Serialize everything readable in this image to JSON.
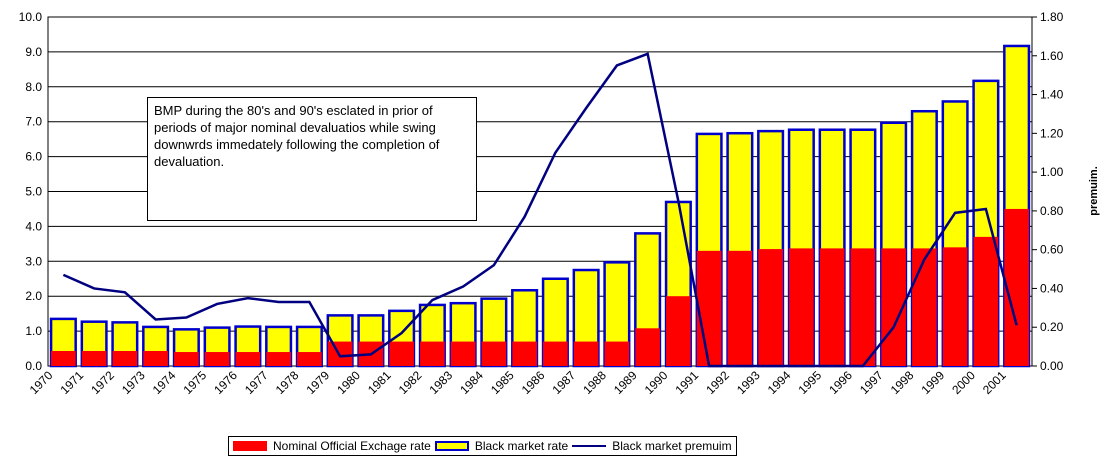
{
  "chart_data": {
    "type": "bar",
    "annotation": "BMP during the 80's and 90's esclated in prior of periods of major nominal devaluatios while swing downwrds immedately following the completion of devaluation.",
    "y2label": "premuim.",
    "categories": [
      "1970",
      "1971",
      "1972",
      "1973",
      "1974",
      "1975",
      "1976",
      "1977",
      "1978",
      "1979",
      "1980",
      "1981",
      "1982",
      "1983",
      "1984",
      "1985",
      "1986",
      "1987",
      "1988",
      "1989",
      "1990",
      "1991",
      "1992",
      "1993",
      "1994",
      "1995",
      "1996",
      "1997",
      "1998",
      "1999",
      "2000",
      "2001"
    ],
    "series": [
      {
        "name": "Black market rate",
        "color": "#ffff00",
        "border": "#0000cc",
        "values": [
          1.35,
          1.27,
          1.25,
          1.12,
          1.05,
          1.1,
          1.13,
          1.12,
          1.12,
          1.45,
          1.45,
          1.58,
          1.75,
          1.8,
          1.93,
          2.17,
          2.5,
          2.75,
          2.97,
          3.8,
          4.7,
          6.65,
          6.67,
          6.73,
          6.77,
          6.77,
          6.77,
          6.97,
          7.3,
          7.58,
          8.17,
          9.17
        ]
      },
      {
        "name": "Nominal Official Exchage rate",
        "color": "#ff0000",
        "values": [
          0.43,
          0.43,
          0.43,
          0.43,
          0.4,
          0.4,
          0.4,
          0.4,
          0.4,
          0.7,
          0.7,
          0.7,
          0.7,
          0.7,
          0.7,
          0.7,
          0.7,
          0.7,
          0.7,
          1.08,
          2.0,
          3.3,
          3.3,
          3.35,
          3.37,
          3.37,
          3.37,
          3.37,
          3.37,
          3.4,
          3.7,
          4.5
        ]
      },
      {
        "name": "Black market premuim",
        "color": "#000080",
        "axis": "y2",
        "type": "line",
        "values": [
          0.47,
          0.4,
          0.38,
          0.24,
          0.25,
          0.32,
          0.35,
          0.33,
          0.33,
          0.05,
          0.06,
          0.17,
          0.34,
          0.41,
          0.52,
          0.77,
          1.1,
          1.33,
          1.55,
          1.61,
          0.85,
          0,
          0,
          0,
          0,
          0,
          0,
          0.2,
          0.55,
          0.79,
          0.81,
          0.21
        ]
      }
    ],
    "ylim": [
      0,
      10
    ],
    "yticks": [
      {
        "value": 0,
        "label": "0.0"
      },
      {
        "value": 1,
        "label": "1.0"
      },
      {
        "value": 2,
        "label": "2.0"
      },
      {
        "value": 3,
        "label": "3.0"
      },
      {
        "value": 4,
        "label": "4.0"
      },
      {
        "value": 5,
        "label": "5.0"
      },
      {
        "value": 6,
        "label": "6.0"
      },
      {
        "value": 7,
        "label": "7.0"
      },
      {
        "value": 8,
        "label": "8.0"
      },
      {
        "value": 9,
        "label": "9.0"
      },
      {
        "value": 10,
        "label": "10.0"
      }
    ],
    "y2lim": [
      0,
      1.8
    ],
    "y2ticks": [
      {
        "value": 0,
        "label": "0.00"
      },
      {
        "value": 0.2,
        "label": "0.20"
      },
      {
        "value": 0.4,
        "label": "0.40"
      },
      {
        "value": 0.6,
        "label": "0.60"
      },
      {
        "value": 0.8,
        "label": "0.80"
      },
      {
        "value": 1,
        "label": "1.00"
      },
      {
        "value": 1.2,
        "label": "1.20"
      },
      {
        "value": 1.4,
        "label": "1.40"
      },
      {
        "value": 1.6,
        "label": "1.60"
      },
      {
        "value": 1.8,
        "label": "1.80"
      }
    ],
    "grid": true
  }
}
